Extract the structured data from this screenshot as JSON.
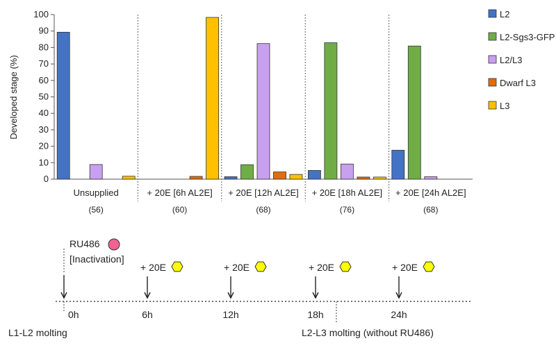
{
  "chart_data": {
    "type": "bar",
    "title": "",
    "xlabel": "",
    "ylabel": "Developed stage (%)",
    "ylim": [
      0,
      100
    ],
    "yticks": [
      0,
      10,
      20,
      30,
      40,
      50,
      60,
      70,
      80,
      90,
      100
    ],
    "grid": false,
    "legend_position": "right",
    "categories": [
      "Unsupplied",
      "+ 20E [6h AL2E]",
      "+ 20E [12h AL2E]",
      "+ 20E [18h AL2E]",
      "+ 20E [24h AL2E]"
    ],
    "sample_sizes": [
      "(56)",
      "(60)",
      "(68)",
      "(76)",
      "(68)"
    ],
    "series": [
      {
        "name": "L2",
        "color": "#4472c4",
        "values": [
          89.3,
          0,
          1.5,
          5.3,
          17.6
        ]
      },
      {
        "name": "L2-Sgs3-GFP",
        "color": "#70ad47",
        "values": [
          0,
          0,
          8.8,
          82.9,
          80.9
        ]
      },
      {
        "name": "L2/L3",
        "color": "#c9a0f0",
        "values": [
          8.9,
          0,
          82.4,
          9.2,
          1.5
        ]
      },
      {
        "name": "Dwarf L3",
        "color": "#e36c0a",
        "values": [
          0,
          1.7,
          4.4,
          1.3,
          0
        ]
      },
      {
        "name": "L3",
        "color": "#ffc000",
        "values": [
          1.8,
          98.3,
          2.9,
          1.3,
          0
        ]
      }
    ]
  },
  "timeline": {
    "ru486_label": "RU486",
    "inactivation_label": "[Inactivation]",
    "marker_color": "#f06292",
    "hexagon_color": "#ffff00",
    "treatment_label": "+ 20E",
    "treatments": [
      "+ 20E",
      "+ 20E",
      "+ 20E",
      "+ 20E"
    ],
    "time_labels": [
      "0h",
      "6h",
      "12h",
      "18h",
      "24h"
    ],
    "l1_l2_label": "L1-L2 molting",
    "l2_l3_label": "L2-L3 molting (without RU486)"
  }
}
